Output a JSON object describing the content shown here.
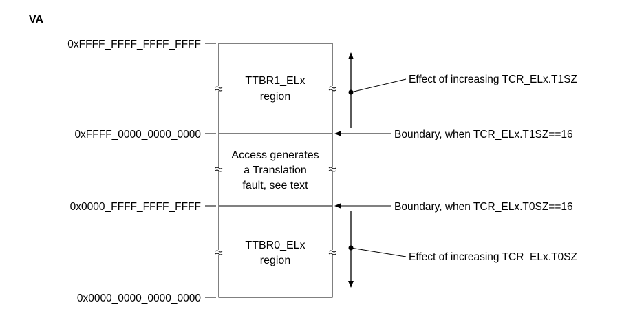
{
  "title": "VA",
  "addresses": {
    "top": "0xFFFF_FFFF_FFFF_FFFF",
    "ttbr1_base": "0xFFFF_0000_0000_0000",
    "ttbr0_top": "0x0000_FFFF_FFFF_FFFF",
    "bottom": "0x0000_0000_0000_0000"
  },
  "regions": {
    "ttbr1": {
      "line1": "TTBR1_ELx",
      "line2": "region"
    },
    "fault": {
      "line1": "Access generates",
      "line2": "a Translation",
      "line3": "fault, see text"
    },
    "ttbr0": {
      "line1": "TTBR0_ELx",
      "line2": "region"
    }
  },
  "annotations": {
    "t1sz_effect": "Effect of increasing TCR_ELx.T1SZ",
    "t1sz_boundary": "Boundary, when TCR_ELx.T1SZ==16",
    "t0sz_boundary": "Boundary, when TCR_ELx.T0SZ==16",
    "t0sz_effect": "Effect of increasing TCR_ELx.T0SZ"
  }
}
